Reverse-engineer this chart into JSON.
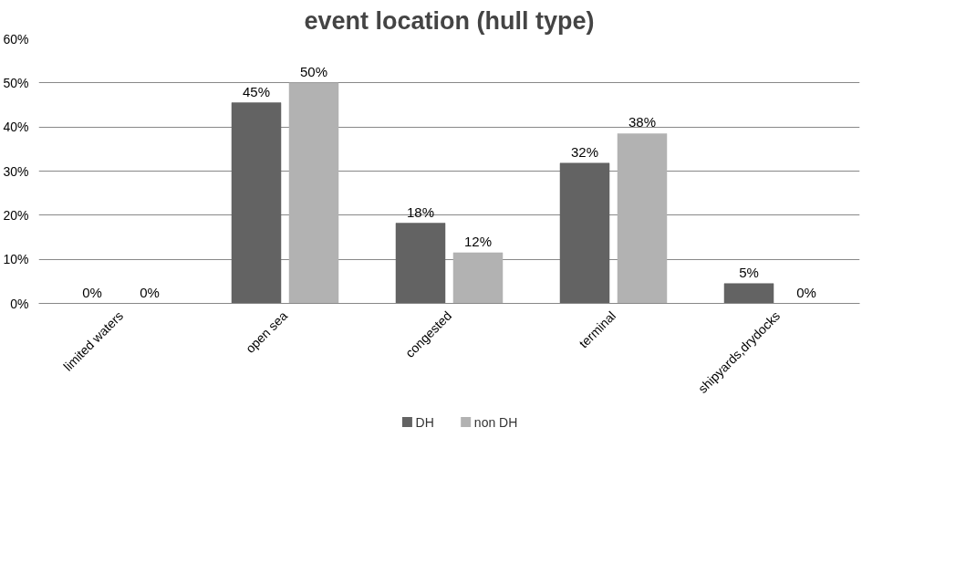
{
  "chart_data": {
    "type": "bar",
    "title": "event location (hull type)",
    "categories": [
      "limited waters",
      "open sea",
      "congested",
      "terminal",
      "shipyards,drydocks"
    ],
    "series": [
      {
        "name": "DH",
        "color": "#636363",
        "values": [
          0,
          45.5,
          18.2,
          31.8,
          4.5
        ],
        "value_labels": [
          "0%",
          "45%",
          "18%",
          "32%",
          "5%"
        ]
      },
      {
        "name": "non DH",
        "color": "#b2b2b2",
        "values": [
          0,
          50,
          11.5,
          38.5,
          0
        ],
        "value_labels": [
          "0%",
          "50%",
          "12%",
          "38%",
          "0%"
        ]
      }
    ],
    "ylim": [
      0,
      60
    ],
    "yticks": [
      {
        "value": 0,
        "label": "0%"
      },
      {
        "value": 10,
        "label": "10%"
      },
      {
        "value": 20,
        "label": "20%"
      },
      {
        "value": 30,
        "label": "30%"
      },
      {
        "value": 40,
        "label": "40%"
      },
      {
        "value": 50,
        "label": "50%"
      },
      {
        "value": 60,
        "label": "60%"
      }
    ],
    "grid": "y",
    "legend": "bottom"
  }
}
